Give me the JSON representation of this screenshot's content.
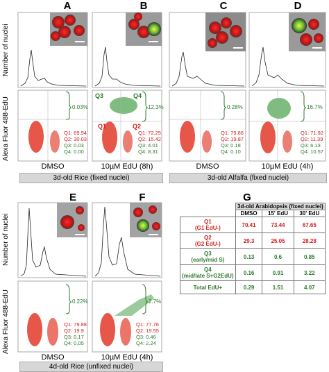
{
  "panel_labels": [
    "A",
    "B",
    "C",
    "D",
    "E",
    "F",
    "G"
  ],
  "y_axis_top": "Number of nuclei",
  "y_axis_bottom": "Alexa Fluor 488-EdU",
  "conditions": {
    "dmso": "DMSO",
    "edu_8h": "10µM EdU (8h)",
    "edu_4h": "10µM EdU (4h)"
  },
  "captions": {
    "rice_fixed": "3d-old Rice (fixed nuclei)",
    "alfalfa_fixed": "3d-old Alfalfa (fixed nuclei)",
    "rice_unfixed": "4d-old Rice (unfixed nuclei)"
  },
  "quadrant_names": {
    "q1": "Q1",
    "q2": "Q2",
    "q3": "Q3",
    "q4": "Q4"
  },
  "panels": {
    "A": {
      "pct": "0.03%",
      "q1": "Q1: 69.94",
      "q2": "Q2: 30.03",
      "q3": "Q3: 0.03",
      "q4": "Q4: 0.00"
    },
    "B": {
      "pct": "12.3%",
      "q1": "Q1: 72.25",
      "q2": "Q2: 15.42",
      "q3": "Q3: 4.01",
      "q4": "Q4: 8.31"
    },
    "C": {
      "pct": "0.28%",
      "q1": "Q1: 79.86",
      "q2": "Q2: 19.87",
      "q3": "Q3: 0.18",
      "q4": "Q4: 0.10"
    },
    "D": {
      "pct": "16.7%",
      "q1": "Q1: 71.92",
      "q2": "Q2: 11.39",
      "q3": "Q3: 6.13",
      "q4": "Q4: 10.57"
    },
    "E": {
      "pct": "0.22%",
      "q1": "Q1: 79.88",
      "q2": "Q2: 19.9",
      "q3": "Q3: 0.17",
      "q4": "Q4: 0.05"
    },
    "F": {
      "pct": "2.7%",
      "q1": "Q1: 77.76",
      "q2": "Q2: 19.55",
      "q3": "Q3: 0.46",
      "q4": "Q4: 2.24"
    }
  },
  "table": {
    "title": "3d-old Arabidopsis (fixed nuclei)",
    "columns": [
      "DMSO",
      "15' EdU",
      "30' EdU"
    ],
    "rows": [
      {
        "label": "Q1",
        "sub": "(G1 EdU-)",
        "vals": [
          "70.41",
          "73.44",
          "67.65"
        ]
      },
      {
        "label": "Q2",
        "sub": "(G2 EdU-)",
        "vals": [
          "29.3",
          "25.05",
          "28.28"
        ]
      },
      {
        "label": "Q3",
        "sub": "(early/mid S)",
        "vals": [
          "0.13",
          "0.6",
          "0.85"
        ]
      },
      {
        "label": "Q4",
        "sub": "(mid/late S+G2EdU)",
        "vals": [
          "0.16",
          "0.91",
          "3.22"
        ]
      },
      {
        "label": "Total EdU+",
        "sub": "",
        "vals": [
          "0.29",
          "1.51",
          "4.07"
        ]
      }
    ]
  },
  "colors": {
    "red": "#d12020",
    "green": "#2c7a2c"
  }
}
